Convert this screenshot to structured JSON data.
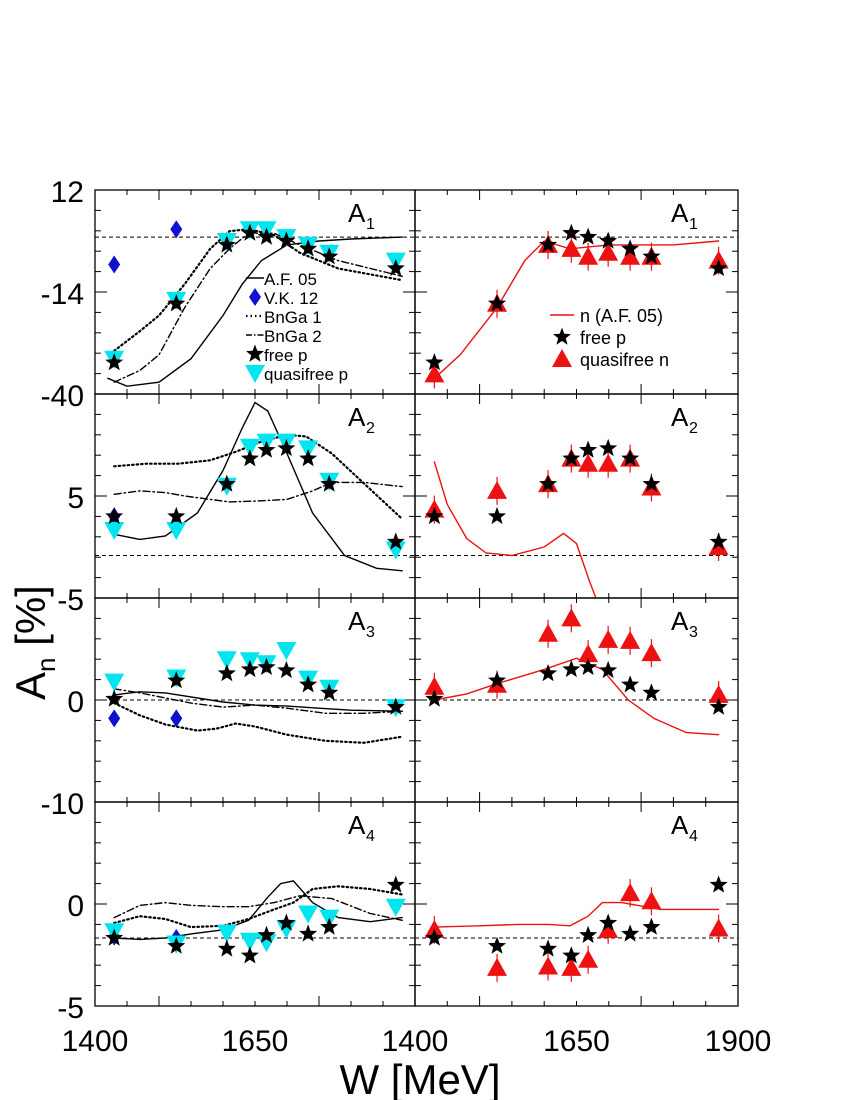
{
  "chart_data": {
    "type": "scatter",
    "xlabel": "W [MeV]",
    "ylabel_main": "A",
    "ylabel_sub": "n",
    "ylabel_suffix": " [%]",
    "x_ticks_left": [
      "1400",
      "1650",
      "1400"
    ],
    "x_ticks_right": [
      "1650",
      "1900"
    ],
    "panel_labels": [
      {
        "main": "A",
        "sub": "1"
      },
      {
        "main": "A",
        "sub": "2"
      },
      {
        "main": "A",
        "sub": "3"
      },
      {
        "main": "A",
        "sub": "4"
      }
    ],
    "row_ticks": [
      {
        "top": "12",
        "mid": "-14"
      },
      {
        "top": "-40",
        "mid": "5"
      },
      {
        "top": "-5",
        "mid": "0"
      },
      {
        "top": "-10",
        "mid": "0"
      }
    ],
    "bottom_tick": "-5",
    "legend_left": [
      "A.F. 05",
      "V.K. 12",
      "BnGa 1",
      "BnGa 2",
      "free p",
      "quasifree p"
    ],
    "legend_right": [
      "n (A.F. 05)",
      "free p",
      "quasifree n"
    ],
    "colors": {
      "free_p": "#000000",
      "quasifree_p": "#00e5ee",
      "vk12": "#1010d0",
      "quasifree_n": "#ee1111",
      "af05_n": "#ee1111"
    },
    "rows": [
      {
        "ylim": [
          -40,
          12
        ],
        "free_p": [
          [
            1430,
            -32
          ],
          [
            1527,
            -17
          ],
          [
            1606,
            -2
          ],
          [
            1642,
            1
          ],
          [
            1668,
            0
          ],
          [
            1699,
            -1
          ],
          [
            1733,
            -3
          ],
          [
            1766,
            -5
          ],
          [
            1870,
            -8
          ]
        ],
        "quasifree_p": [
          [
            1430,
            -31
          ],
          [
            1527,
            -16
          ],
          [
            1606,
            -1
          ],
          [
            1642,
            2
          ],
          [
            1668,
            2
          ],
          [
            1699,
            0
          ],
          [
            1733,
            -2
          ],
          [
            1766,
            -4
          ],
          [
            1870,
            -6
          ]
        ],
        "vk12": [
          [
            1430,
            -7
          ],
          [
            1527,
            2
          ]
        ],
        "quasifree_n": [
          [
            1430,
            -35
          ],
          [
            1527,
            -17
          ],
          [
            1606,
            -2
          ],
          [
            1642,
            -3
          ],
          [
            1668,
            -5
          ],
          [
            1699,
            -4
          ],
          [
            1733,
            -5
          ],
          [
            1766,
            -5
          ],
          [
            1870,
            -6
          ]
        ],
        "af05": [
          [
            1420,
            -36
          ],
          [
            1450,
            -38
          ],
          [
            1500,
            -37
          ],
          [
            1550,
            -31
          ],
          [
            1600,
            -20
          ],
          [
            1630,
            -12
          ],
          [
            1660,
            -6
          ],
          [
            1700,
            -2
          ],
          [
            1750,
            -1
          ],
          [
            1800,
            -0.5
          ],
          [
            1880,
            0
          ]
        ],
        "bnga1": [
          [
            1430,
            -29
          ],
          [
            1470,
            -24
          ],
          [
            1500,
            -20
          ],
          [
            1540,
            -12
          ],
          [
            1580,
            -3
          ],
          [
            1610,
            1.5
          ],
          [
            1640,
            2
          ],
          [
            1680,
            0.5
          ],
          [
            1720,
            -4
          ],
          [
            1780,
            -8
          ],
          [
            1880,
            -11
          ]
        ],
        "bnga2": [
          [
            1430,
            -37
          ],
          [
            1470,
            -34
          ],
          [
            1500,
            -30
          ],
          [
            1540,
            -18
          ],
          [
            1580,
            -8
          ],
          [
            1610,
            -3
          ],
          [
            1640,
            1
          ],
          [
            1680,
            1
          ],
          [
            1720,
            -2
          ],
          [
            1780,
            -6
          ],
          [
            1880,
            -10
          ]
        ],
        "af05_n": [
          [
            1430,
            -36
          ],
          [
            1470,
            -30
          ],
          [
            1527,
            -18
          ],
          [
            1570,
            -6
          ],
          [
            1600,
            -1
          ],
          [
            1640,
            -3
          ],
          [
            1700,
            -2
          ],
          [
            1800,
            -2
          ],
          [
            1870,
            -1
          ]
        ]
      },
      {
        "ylim": [
          -5,
          19
        ],
        "free_p": [
          [
            1430,
            4.6
          ],
          [
            1527,
            4.6
          ],
          [
            1606,
            8.4
          ],
          [
            1642,
            11.4
          ],
          [
            1668,
            12.4
          ],
          [
            1699,
            12.6
          ],
          [
            1733,
            11.4
          ],
          [
            1766,
            8.4
          ],
          [
            1870,
            1.6
          ]
        ],
        "quasifree_p": [
          [
            1430,
            3
          ],
          [
            1527,
            3
          ],
          [
            1606,
            8.2
          ],
          [
            1642,
            12.8
          ],
          [
            1668,
            13.4
          ],
          [
            1699,
            13.4
          ],
          [
            1733,
            12.6
          ],
          [
            1766,
            8.8
          ],
          [
            1870,
            0.7
          ]
        ],
        "vk12": [
          [
            1430,
            4.6
          ],
          [
            1527,
            3.2
          ]
        ],
        "quasifree_n": [
          [
            1430,
            5.4
          ],
          [
            1527,
            7.6
          ],
          [
            1606,
            8.4
          ],
          [
            1642,
            11.4
          ],
          [
            1668,
            10.8
          ],
          [
            1699,
            10.8
          ],
          [
            1733,
            11.4
          ],
          [
            1766,
            8.0
          ],
          [
            1870,
            1.0
          ]
        ],
        "af05": [
          [
            1430,
            2.5
          ],
          [
            1470,
            1.9
          ],
          [
            1510,
            2.3
          ],
          [
            1560,
            5
          ],
          [
            1600,
            10
          ],
          [
            1630,
            15
          ],
          [
            1650,
            18
          ],
          [
            1670,
            17
          ],
          [
            1700,
            12
          ],
          [
            1740,
            5
          ],
          [
            1790,
            0
          ],
          [
            1840,
            -1.5
          ],
          [
            1880,
            -1.8
          ]
        ],
        "bnga1": [
          [
            1430,
            10.5
          ],
          [
            1480,
            10.8
          ],
          [
            1530,
            10.8
          ],
          [
            1580,
            11.2
          ],
          [
            1620,
            12.2
          ],
          [
            1660,
            13.4
          ],
          [
            1700,
            14.2
          ],
          [
            1730,
            14
          ],
          [
            1770,
            12
          ],
          [
            1820,
            8.5
          ],
          [
            1880,
            4.3
          ]
        ],
        "bnga2": [
          [
            1430,
            7.2
          ],
          [
            1470,
            7.6
          ],
          [
            1510,
            7.4
          ],
          [
            1540,
            7
          ],
          [
            1580,
            6.6
          ],
          [
            1610,
            6.3
          ],
          [
            1650,
            6.4
          ],
          [
            1700,
            6.6
          ],
          [
            1740,
            7.6
          ],
          [
            1770,
            8.6
          ],
          [
            1820,
            8.6
          ],
          [
            1880,
            8.1
          ]
        ],
        "af05_n": [
          [
            1430,
            11
          ],
          [
            1450,
            6
          ],
          [
            1480,
            2
          ],
          [
            1510,
            0.3
          ],
          [
            1550,
            0
          ],
          [
            1600,
            1
          ],
          [
            1630,
            2.6
          ],
          [
            1650,
            1.4
          ],
          [
            1670,
            -3
          ],
          [
            1680,
            -5
          ]
        ]
      },
      {
        "ylim": [
          -10,
          10
        ],
        "free_p": [
          [
            1430,
            0.1
          ],
          [
            1527,
            1.9
          ],
          [
            1606,
            2.6
          ],
          [
            1642,
            3.0
          ],
          [
            1668,
            3.2
          ],
          [
            1699,
            2.9
          ],
          [
            1733,
            1.5
          ],
          [
            1766,
            0.7
          ],
          [
            1870,
            -0.7
          ]
        ],
        "quasifree_p": [
          [
            1430,
            1.8
          ],
          [
            1527,
            2.2
          ],
          [
            1606,
            4
          ],
          [
            1642,
            3.9
          ],
          [
            1668,
            3.6
          ],
          [
            1699,
            4.9
          ],
          [
            1733,
            2.1
          ],
          [
            1766,
            1.2
          ],
          [
            1870,
            -0.7
          ]
        ],
        "vk12": [
          [
            1430,
            -1.8
          ],
          [
            1527,
            -1.8
          ]
        ],
        "quasifree_n": [
          [
            1430,
            1.3
          ],
          [
            1527,
            1.5
          ],
          [
            1606,
            6.5
          ],
          [
            1642,
            8
          ],
          [
            1668,
            4.5
          ],
          [
            1699,
            5.9
          ],
          [
            1733,
            5.8
          ],
          [
            1766,
            4.6
          ],
          [
            1870,
            0.5
          ]
        ],
        "af05": [
          [
            1430,
            0.5
          ],
          [
            1470,
            0.8
          ],
          [
            1510,
            0.7
          ],
          [
            1550,
            0.3
          ],
          [
            1600,
            -0.2
          ],
          [
            1650,
            -0.5
          ],
          [
            1700,
            -0.6
          ],
          [
            1750,
            -0.8
          ],
          [
            1800,
            -1
          ],
          [
            1880,
            -1.1
          ]
        ],
        "bnga1": [
          [
            1430,
            -0.3
          ],
          [
            1470,
            -1.5
          ],
          [
            1510,
            -2.4
          ],
          [
            1560,
            -3
          ],
          [
            1590,
            -2.8
          ],
          [
            1620,
            -2.3
          ],
          [
            1650,
            -2.6
          ],
          [
            1700,
            -3.4
          ],
          [
            1760,
            -4
          ],
          [
            1820,
            -4.2
          ],
          [
            1880,
            -3.6
          ]
        ],
        "bnga2": [
          [
            1430,
            1.1
          ],
          [
            1470,
            0.7
          ],
          [
            1510,
            0.2
          ],
          [
            1550,
            -0.3
          ],
          [
            1600,
            -0.7
          ],
          [
            1650,
            -0.5
          ],
          [
            1700,
            -0.8
          ],
          [
            1760,
            -1.3
          ],
          [
            1820,
            -1.3
          ],
          [
            1880,
            -1.1
          ]
        ],
        "af05_n": [
          [
            1430,
            0
          ],
          [
            1480,
            0.6
          ],
          [
            1527,
            1.6
          ],
          [
            1600,
            3
          ],
          [
            1650,
            4.1
          ],
          [
            1690,
            3
          ],
          [
            1730,
            0
          ],
          [
            1770,
            -1.8
          ],
          [
            1820,
            -3.2
          ],
          [
            1870,
            -3.4
          ]
        ]
      },
      {
        "ylim": [
          -5,
          10
        ],
        "free_p": [
          [
            1430,
            0
          ],
          [
            1527,
            -0.6
          ],
          [
            1606,
            -0.8
          ],
          [
            1642,
            -1.3
          ],
          [
            1668,
            0.2
          ],
          [
            1699,
            1.1
          ],
          [
            1733,
            0.3
          ],
          [
            1766,
            0.8
          ],
          [
            1870,
            3.9
          ]
        ],
        "quasifree_p": [
          [
            1430,
            0.5
          ],
          [
            1527,
            -0.4
          ],
          [
            1606,
            0.4
          ],
          [
            1642,
            -0.2
          ],
          [
            1668,
            -0.3
          ],
          [
            1699,
            0.7
          ],
          [
            1733,
            1.8
          ],
          [
            1766,
            1.5
          ],
          [
            1870,
            2.3
          ]
        ],
        "vk12": [
          [
            1430,
            0.1
          ],
          [
            1527,
            0
          ]
        ],
        "quasifree_n": [
          [
            1430,
            0.6
          ],
          [
            1527,
            -2.2
          ],
          [
            1606,
            -2.1
          ],
          [
            1642,
            -2.2
          ],
          [
            1668,
            -1.6
          ],
          [
            1699,
            0.6
          ],
          [
            1733,
            3.3
          ],
          [
            1766,
            2.7
          ],
          [
            1870,
            0.7
          ]
        ],
        "af05": [
          [
            1430,
            0
          ],
          [
            1470,
            -0.1
          ],
          [
            1510,
            0
          ],
          [
            1550,
            0.3
          ],
          [
            1600,
            0.6
          ],
          [
            1640,
            1.3
          ],
          [
            1670,
            3
          ],
          [
            1690,
            4
          ],
          [
            1710,
            4.2
          ],
          [
            1740,
            2.6
          ],
          [
            1780,
            1.5
          ],
          [
            1830,
            1.2
          ],
          [
            1880,
            1.5
          ]
        ],
        "bnga1": [
          [
            1430,
            1.1
          ],
          [
            1470,
            1.6
          ],
          [
            1510,
            1.4
          ],
          [
            1550,
            0.8
          ],
          [
            1600,
            0.9
          ],
          [
            1640,
            1.4
          ],
          [
            1680,
            2.1
          ],
          [
            1710,
            2.6
          ],
          [
            1740,
            3.6
          ],
          [
            1780,
            3.8
          ],
          [
            1830,
            3.6
          ],
          [
            1880,
            3.2
          ]
        ],
        "bnga2": [
          [
            1430,
            1.5
          ],
          [
            1470,
            2.4
          ],
          [
            1510,
            2.6
          ],
          [
            1550,
            2.4
          ],
          [
            1600,
            2.3
          ],
          [
            1640,
            2.3
          ],
          [
            1680,
            2.6
          ],
          [
            1720,
            3.1
          ],
          [
            1770,
            2.9
          ],
          [
            1830,
            1.8
          ],
          [
            1880,
            1.3
          ]
        ],
        "af05_n": [
          [
            1430,
            0.8
          ],
          [
            1500,
            0.9
          ],
          [
            1560,
            1
          ],
          [
            1606,
            1
          ],
          [
            1640,
            0.9
          ],
          [
            1668,
            1.6
          ],
          [
            1690,
            2.6
          ],
          [
            1720,
            2.6
          ],
          [
            1780,
            2.1
          ],
          [
            1870,
            2.1
          ]
        ]
      }
    ]
  }
}
